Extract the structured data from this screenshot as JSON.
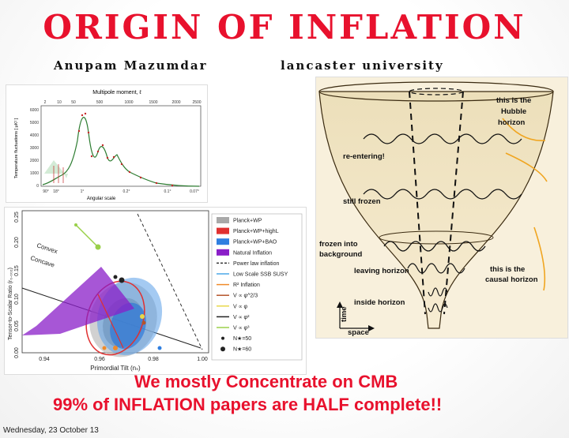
{
  "slide": {
    "title": "ORIGIN OF INFLATION",
    "author": "Anupam Mazumdar",
    "affiliation": "lancaster university",
    "message_line1": "We mostly Concentrate on CMB",
    "message_line2": "99% of INFLATION papers are HALF complete!!",
    "footer_date": "Wednesday, 23 October 13",
    "accent_color": "#e8112d"
  },
  "cmb_plot": {
    "top_axis_label": "Multipole moment, ℓ",
    "top_ticks": [
      "2",
      "10",
      "50",
      "500",
      "1000",
      "1500",
      "2000",
      "2500"
    ],
    "ylabel": "Temperature fluctuations [ μK² ]",
    "y_ticks": [
      "6000",
      "5000",
      "4000",
      "3000",
      "2000",
      "1000",
      "0"
    ],
    "xlabel": "Angular scale",
    "x_ticks": [
      "90°",
      "18°",
      "1°",
      "0.2°",
      "0.1°",
      "0.07°"
    ]
  },
  "tilt_plot": {
    "xlabel": "Primordial Tilt (nₛ)",
    "ylabel": "Tensor-to-Scalar Ratio (r₀.₀₀₂)",
    "x_ticks": [
      "0.94",
      "0.96",
      "0.98",
      "1.00"
    ],
    "y_ticks": [
      "0.00",
      "0.05",
      "0.10",
      "0.15",
      "0.20",
      "0.25"
    ],
    "convex_label": "Convex",
    "concave_label": "Concave",
    "legend": [
      {
        "label": "Planck+WP",
        "color": "#a9a9a9",
        "kind": "box"
      },
      {
        "label": "Planck+WP+highL",
        "color": "#e03030",
        "kind": "box"
      },
      {
        "label": "Planck+WP+BAO",
        "color": "#2f7fe0",
        "kind": "box"
      },
      {
        "label": "Natural Inflation",
        "color": "#8a1ec8",
        "kind": "box"
      },
      {
        "label": "Power law inflation",
        "color": "#333333",
        "kind": "dash"
      },
      {
        "label": "Low Scale SSB SUSY",
        "color": "#4aa8e8",
        "kind": "line"
      },
      {
        "label": "R² Inflation",
        "color": "#f08a2a",
        "kind": "line"
      },
      {
        "label": "V ∝ φ^2/3",
        "color": "#b5542a",
        "kind": "line"
      },
      {
        "label": "V ∝ φ",
        "color": "#e8d84a",
        "kind": "line"
      },
      {
        "label": "V ∝ φ²",
        "color": "#222222",
        "kind": "line"
      },
      {
        "label": "V ∝ φ³",
        "color": "#9ad04a",
        "kind": "line"
      },
      {
        "label": "N★=50",
        "color": "#222222",
        "kind": "dotsmall"
      },
      {
        "label": "N★=60",
        "color": "#222222",
        "kind": "dot"
      }
    ]
  },
  "horizon_cartoon": {
    "hubble_label_1": "this is the",
    "hubble_label_2": "Hubble",
    "hubble_label_3": "horizon",
    "reentering": "re-entering!",
    "still_frozen": "still frozen",
    "frozen_bg_1": "frozen into",
    "frozen_bg_2": "background",
    "leaving": "leaving horizon",
    "causal_1": "this is the",
    "causal_2": "causal horizon",
    "inside": "inside horizon",
    "time_axis": "time",
    "space_axis": "space"
  }
}
